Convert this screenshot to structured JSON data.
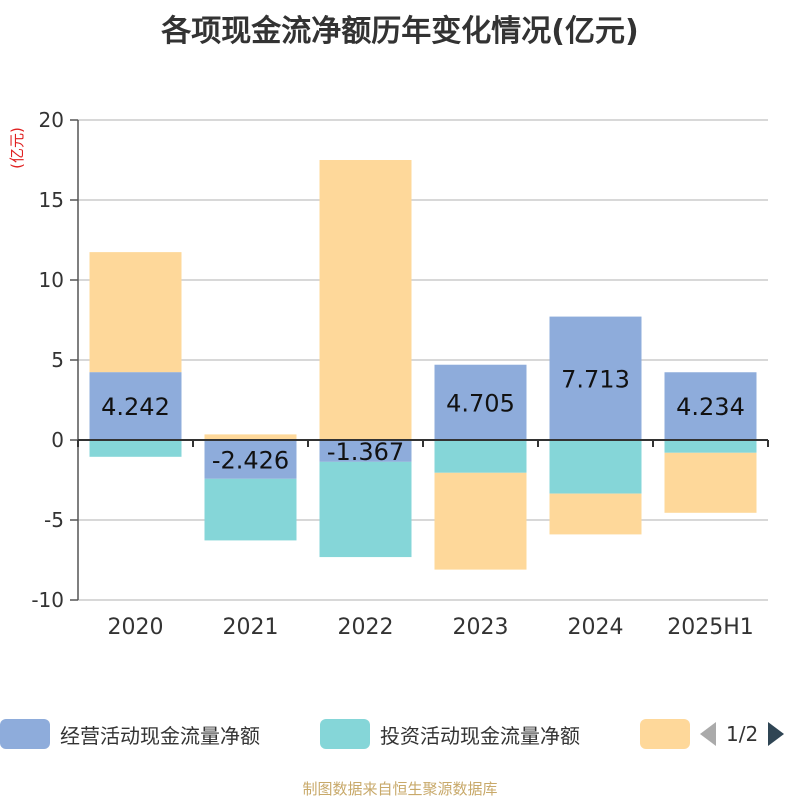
{
  "title": "各项现金流净额历年变化情况(亿元)",
  "source": "制图数据来自恒生聚源数据库",
  "chart_data": {
    "type": "bar",
    "stacked": true,
    "categories": [
      "2020",
      "2021",
      "2022",
      "2023",
      "2024",
      "2025H1"
    ],
    "ylabel": "(亿元)",
    "ylim": [
      -10,
      20
    ],
    "yticks": [
      20,
      15,
      10,
      5,
      0,
      -5,
      -10
    ],
    "grid": true,
    "legend_position": "bottom",
    "series": [
      {
        "name": "经营活动现金流量净额",
        "color": "#8eacdb",
        "values": [
          4.242,
          -2.426,
          -1.367,
          4.705,
          7.713,
          4.234
        ],
        "show_labels": true
      },
      {
        "name": "投资活动现金流量净额",
        "color": "#85d6d8",
        "values": [
          -1.05,
          -3.85,
          -5.95,
          -2.05,
          -3.35,
          -0.8
        ],
        "show_labels": false
      },
      {
        "name": "",
        "color": "#fed89a",
        "values": [
          7.5,
          0.35,
          17.5,
          -6.05,
          -2.55,
          -3.75
        ],
        "show_labels": false
      }
    ]
  },
  "legend": {
    "pager_text": "1/2"
  }
}
